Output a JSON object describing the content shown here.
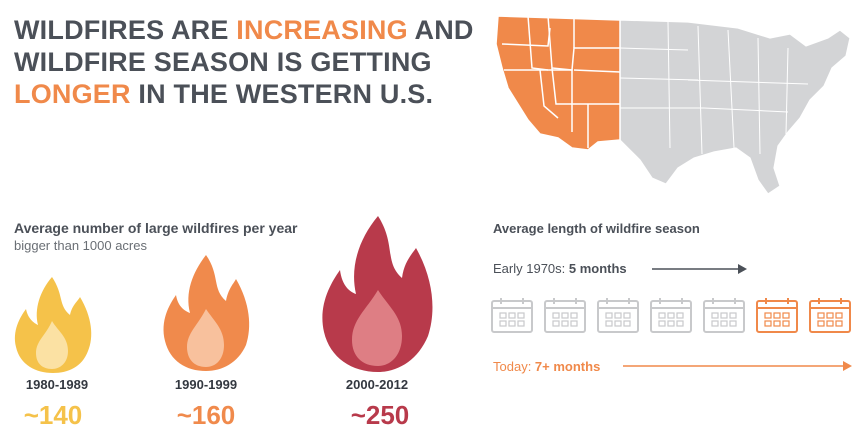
{
  "headline": {
    "part1": "WILDFIRES ARE ",
    "highlight1": "INCREASING",
    "part2": " AND WILDFIRE SEASON IS GETTING ",
    "highlight2": "LONGER",
    "part3": " IN THE WESTERN U.S."
  },
  "colors": {
    "accent_orange": "#f0894a",
    "map_gray": "#d3d4d6",
    "flame_light": "#fbd56a",
    "flame_mid": "#f28c4e",
    "flame_dark": "#be3b4c",
    "calendar_gray": "#c8c9cb"
  },
  "map": {
    "icon": "us-map-western-states-highlighted"
  },
  "fires": {
    "title": "Average number of large wildfires per year",
    "subtitle": "bigger than 1000 acres",
    "items": [
      {
        "decade": "1980-1989",
        "count": "~140",
        "color": "#f5c24a"
      },
      {
        "decade": "1990-1999",
        "count": "~160",
        "color": "#f08a4c"
      },
      {
        "decade": "2000-2012",
        "count": "~250",
        "color": "#b83a4b"
      }
    ]
  },
  "season": {
    "title": "Average length of wildfire season",
    "early_label": "Early 1970s: ",
    "early_value": "5 months",
    "today_label": "Today: ",
    "today_value": "7+ months",
    "calendars_total": 7,
    "calendars_gray": 5
  }
}
